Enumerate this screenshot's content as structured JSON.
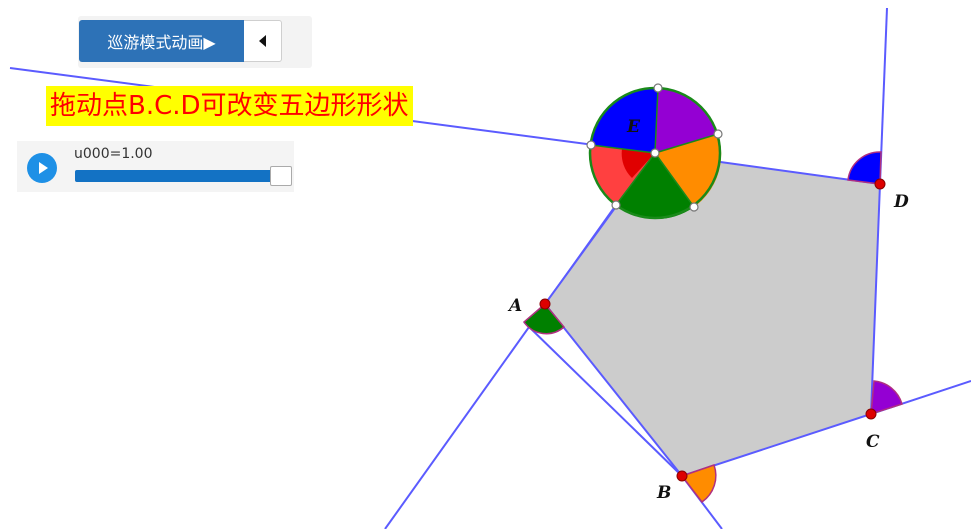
{
  "toolbar": {
    "tour_button_label": "巡游模式动画▶",
    "back_button_icon": "triangle-left-icon"
  },
  "banner": {
    "text": "拖动点B.C.D可改变五边形形状"
  },
  "slider": {
    "label": "u000=1.00",
    "value": 1.0,
    "play_icon": "play-icon"
  },
  "points": {
    "A": "A",
    "B": "B",
    "C": "C",
    "D": "D",
    "E": "E"
  },
  "colors": {
    "pentagon_fill": "#cccccc",
    "line": "#5b5bff",
    "point": "#dd0000",
    "angle_A": "#008000",
    "angle_B": "#ff8c00",
    "angle_C": "#9400d3",
    "angle_D": "#0000ff",
    "angle_E": "#ff0000",
    "banner_bg": "#ffff00",
    "banner_text": "#ff0000"
  }
}
